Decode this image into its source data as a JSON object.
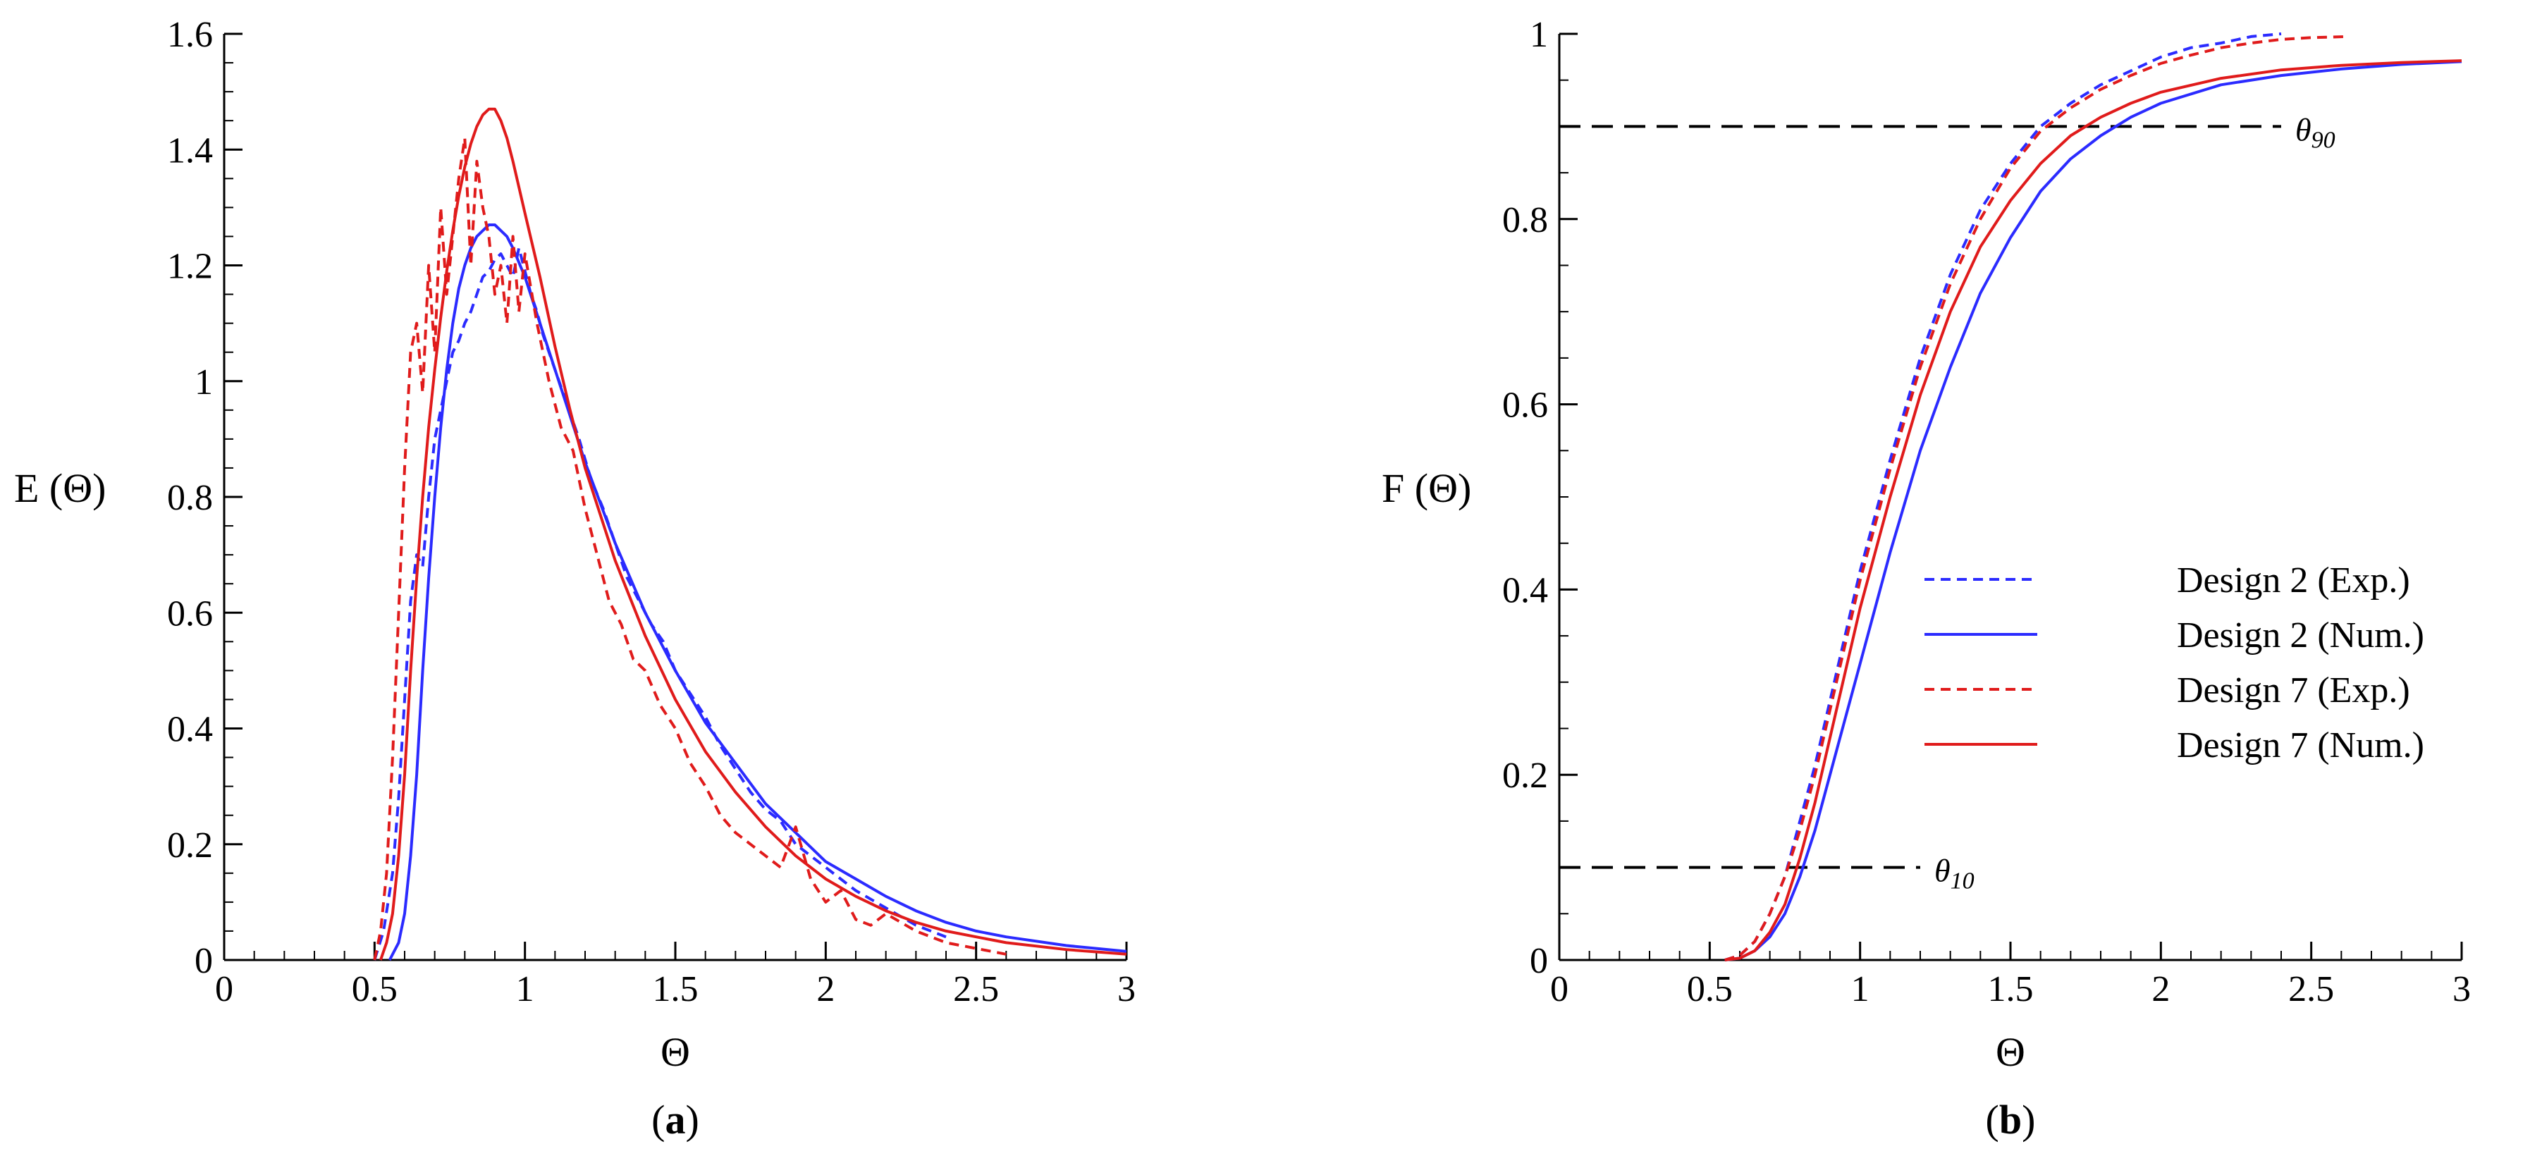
{
  "colors": {
    "design2": "#2b2bff",
    "design7": "#e01b1b",
    "reference": "#000000"
  },
  "chart_data": [
    {
      "type": "line",
      "caption_letter": "a",
      "xlabel": "Θ",
      "ylabel": "E (Θ)",
      "xlim": [
        0,
        3
      ],
      "ylim": [
        0,
        1.6
      ],
      "xticks": [
        "0",
        "0.5",
        "1",
        "1.5",
        "2",
        "2.5",
        "3"
      ],
      "yticks": [
        "0",
        "0.2",
        "0.4",
        "0.6",
        "0.8",
        "1",
        "1.2",
        "1.4",
        "1.6"
      ],
      "grid": false,
      "series": [
        {
          "name": "Design 2 (Exp.)",
          "style": "dashed",
          "color_key": "design2",
          "x": [
            0.5,
            0.53,
            0.56,
            0.58,
            0.6,
            0.62,
            0.64,
            0.66,
            0.68,
            0.7,
            0.72,
            0.74,
            0.76,
            0.78,
            0.8,
            0.82,
            0.84,
            0.86,
            0.88,
            0.9,
            0.92,
            0.94,
            0.96,
            0.98,
            1.0,
            1.02,
            1.04,
            1.06,
            1.08,
            1.1,
            1.14,
            1.18,
            1.22,
            1.26,
            1.3,
            1.34,
            1.38,
            1.42,
            1.46,
            1.5,
            1.55,
            1.6,
            1.65,
            1.7,
            1.75,
            1.8,
            1.85,
            1.9,
            1.95,
            2.0,
            2.1,
            2.2,
            2.3,
            2.4
          ],
          "y": [
            0.0,
            0.05,
            0.15,
            0.28,
            0.45,
            0.62,
            0.7,
            0.68,
            0.8,
            0.9,
            0.95,
            1.0,
            1.05,
            1.07,
            1.1,
            1.12,
            1.15,
            1.18,
            1.19,
            1.21,
            1.22,
            1.2,
            1.18,
            1.23,
            1.19,
            1.15,
            1.12,
            1.08,
            1.05,
            1.02,
            0.96,
            0.9,
            0.83,
            0.78,
            0.72,
            0.66,
            0.62,
            0.58,
            0.55,
            0.5,
            0.46,
            0.42,
            0.37,
            0.33,
            0.29,
            0.26,
            0.24,
            0.2,
            0.18,
            0.16,
            0.12,
            0.09,
            0.06,
            0.04
          ]
        },
        {
          "name": "Design 2 (Num.)",
          "style": "solid",
          "color_key": "design2",
          "x": [
            0.55,
            0.58,
            0.6,
            0.62,
            0.64,
            0.66,
            0.68,
            0.7,
            0.72,
            0.74,
            0.76,
            0.78,
            0.8,
            0.82,
            0.84,
            0.86,
            0.88,
            0.9,
            0.92,
            0.94,
            0.96,
            1.0,
            1.05,
            1.1,
            1.15,
            1.2,
            1.3,
            1.4,
            1.5,
            1.6,
            1.7,
            1.8,
            1.9,
            2.0,
            2.1,
            2.2,
            2.3,
            2.4,
            2.5,
            2.6,
            2.8,
            3.0
          ],
          "y": [
            0.0,
            0.03,
            0.08,
            0.18,
            0.32,
            0.5,
            0.66,
            0.8,
            0.92,
            1.02,
            1.1,
            1.16,
            1.2,
            1.23,
            1.25,
            1.26,
            1.27,
            1.27,
            1.26,
            1.25,
            1.23,
            1.18,
            1.1,
            1.02,
            0.94,
            0.86,
            0.72,
            0.6,
            0.5,
            0.41,
            0.34,
            0.27,
            0.22,
            0.17,
            0.14,
            0.11,
            0.085,
            0.065,
            0.05,
            0.04,
            0.025,
            0.015
          ]
        },
        {
          "name": "Design 7 (Exp.)",
          "style": "dashed",
          "color_key": "design7",
          "x": [
            0.5,
            0.52,
            0.54,
            0.56,
            0.58,
            0.6,
            0.62,
            0.64,
            0.66,
            0.68,
            0.7,
            0.72,
            0.74,
            0.76,
            0.78,
            0.8,
            0.82,
            0.84,
            0.86,
            0.88,
            0.9,
            0.92,
            0.94,
            0.96,
            0.98,
            1.0,
            1.04,
            1.08,
            1.12,
            1.16,
            1.2,
            1.24,
            1.28,
            1.32,
            1.36,
            1.4,
            1.45,
            1.5,
            1.55,
            1.6,
            1.65,
            1.7,
            1.75,
            1.8,
            1.85,
            1.9,
            1.95,
            2.0,
            2.05,
            2.1,
            2.15,
            2.2,
            2.3,
            2.4,
            2.5,
            2.6
          ],
          "y": [
            0.0,
            0.05,
            0.15,
            0.35,
            0.6,
            0.85,
            1.05,
            1.1,
            0.98,
            1.2,
            1.05,
            1.3,
            1.15,
            1.25,
            1.35,
            1.42,
            1.2,
            1.38,
            1.3,
            1.25,
            1.15,
            1.2,
            1.1,
            1.25,
            1.12,
            1.22,
            1.1,
            1.0,
            0.92,
            0.88,
            0.78,
            0.7,
            0.62,
            0.58,
            0.52,
            0.5,
            0.44,
            0.4,
            0.34,
            0.3,
            0.25,
            0.22,
            0.2,
            0.18,
            0.16,
            0.23,
            0.14,
            0.1,
            0.12,
            0.07,
            0.06,
            0.08,
            0.05,
            0.03,
            0.02,
            0.01
          ]
        },
        {
          "name": "Design 7 (Num.)",
          "style": "solid",
          "color_key": "design7",
          "x": [
            0.52,
            0.54,
            0.56,
            0.58,
            0.6,
            0.62,
            0.64,
            0.66,
            0.68,
            0.7,
            0.72,
            0.74,
            0.76,
            0.78,
            0.8,
            0.82,
            0.84,
            0.86,
            0.88,
            0.9,
            0.92,
            0.94,
            0.96,
            1.0,
            1.05,
            1.1,
            1.15,
            1.2,
            1.3,
            1.4,
            1.5,
            1.6,
            1.7,
            1.8,
            1.9,
            2.0,
            2.1,
            2.2,
            2.3,
            2.4,
            2.5,
            2.6,
            2.8,
            3.0
          ],
          "y": [
            0.0,
            0.03,
            0.08,
            0.18,
            0.32,
            0.5,
            0.66,
            0.8,
            0.92,
            1.02,
            1.11,
            1.19,
            1.26,
            1.32,
            1.37,
            1.41,
            1.44,
            1.46,
            1.47,
            1.47,
            1.45,
            1.42,
            1.38,
            1.29,
            1.18,
            1.06,
            0.95,
            0.85,
            0.69,
            0.56,
            0.45,
            0.36,
            0.29,
            0.23,
            0.18,
            0.14,
            0.11,
            0.085,
            0.065,
            0.05,
            0.04,
            0.03,
            0.018,
            0.01
          ]
        }
      ]
    },
    {
      "type": "line",
      "caption_letter": "b",
      "xlabel": "Θ",
      "ylabel": "F (Θ)",
      "xlim": [
        0,
        3
      ],
      "ylim": [
        0,
        1
      ],
      "xticks": [
        "0",
        "0.5",
        "1",
        "1.5",
        "2",
        "2.5",
        "3"
      ],
      "yticks": [
        "0",
        "0.2",
        "0.4",
        "0.6",
        "0.8",
        "1"
      ],
      "grid": false,
      "legend": "right-middle",
      "reference_lines": [
        {
          "label": "θ90",
          "label_main": "θ",
          "label_sub": "90",
          "y": 0.9,
          "x": [
            0,
            2.4
          ]
        },
        {
          "label": "θ10",
          "label_main": "θ",
          "label_sub": "10",
          "y": 0.1,
          "x": [
            0,
            1.2
          ]
        }
      ],
      "series": [
        {
          "name": "Design 2 (Exp.)",
          "style": "dashed",
          "color_key": "design2",
          "x": [
            0.55,
            0.6,
            0.65,
            0.7,
            0.75,
            0.8,
            0.85,
            0.9,
            0.95,
            1.0,
            1.1,
            1.2,
            1.3,
            1.4,
            1.5,
            1.6,
            1.7,
            1.8,
            1.9,
            2.0,
            2.1,
            2.2,
            2.3,
            2.4
          ],
          "y": [
            0.0,
            0.005,
            0.02,
            0.05,
            0.09,
            0.15,
            0.21,
            0.28,
            0.35,
            0.42,
            0.54,
            0.65,
            0.74,
            0.81,
            0.86,
            0.9,
            0.925,
            0.945,
            0.96,
            0.975,
            0.985,
            0.99,
            0.997,
            1.0
          ]
        },
        {
          "name": "Design 2 (Num.)",
          "style": "solid",
          "color_key": "design2",
          "x": [
            0.55,
            0.6,
            0.65,
            0.7,
            0.75,
            0.8,
            0.85,
            0.9,
            0.95,
            1.0,
            1.1,
            1.2,
            1.3,
            1.4,
            1.5,
            1.6,
            1.7,
            1.8,
            1.9,
            2.0,
            2.2,
            2.4,
            2.6,
            2.8,
            3.0
          ],
          "y": [
            0.0,
            0.002,
            0.01,
            0.025,
            0.05,
            0.09,
            0.14,
            0.2,
            0.26,
            0.32,
            0.44,
            0.55,
            0.64,
            0.72,
            0.78,
            0.83,
            0.865,
            0.89,
            0.91,
            0.925,
            0.945,
            0.955,
            0.962,
            0.967,
            0.97
          ]
        },
        {
          "name": "Design 7 (Exp.)",
          "style": "dashed",
          "color_key": "design7",
          "x": [
            0.55,
            0.6,
            0.65,
            0.7,
            0.75,
            0.8,
            0.85,
            0.9,
            0.95,
            1.0,
            1.1,
            1.2,
            1.3,
            1.4,
            1.5,
            1.6,
            1.7,
            1.8,
            1.9,
            2.0,
            2.1,
            2.2,
            2.3,
            2.4,
            2.5,
            2.62
          ],
          "y": [
            0.0,
            0.005,
            0.02,
            0.05,
            0.09,
            0.14,
            0.2,
            0.27,
            0.34,
            0.41,
            0.53,
            0.64,
            0.73,
            0.8,
            0.855,
            0.895,
            0.92,
            0.94,
            0.955,
            0.968,
            0.977,
            0.985,
            0.99,
            0.994,
            0.996,
            0.997
          ]
        },
        {
          "name": "Design 7 (Num.)",
          "style": "solid",
          "color_key": "design7",
          "x": [
            0.55,
            0.6,
            0.65,
            0.7,
            0.75,
            0.8,
            0.85,
            0.9,
            0.95,
            1.0,
            1.1,
            1.2,
            1.3,
            1.4,
            1.5,
            1.6,
            1.7,
            1.8,
            1.9,
            2.0,
            2.2,
            2.4,
            2.6,
            2.8,
            3.0
          ],
          "y": [
            0.0,
            0.002,
            0.01,
            0.03,
            0.06,
            0.11,
            0.17,
            0.24,
            0.31,
            0.38,
            0.5,
            0.61,
            0.7,
            0.77,
            0.82,
            0.86,
            0.89,
            0.91,
            0.925,
            0.937,
            0.952,
            0.961,
            0.966,
            0.969,
            0.971
          ]
        }
      ]
    }
  ]
}
